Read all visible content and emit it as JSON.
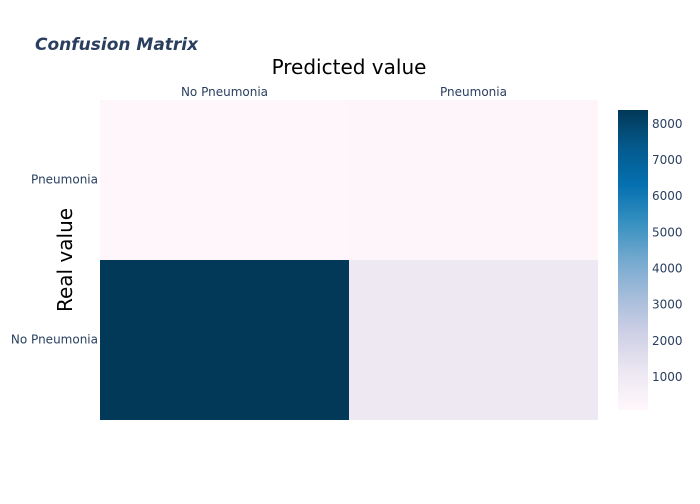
{
  "chart_data": {
    "type": "heatmap",
    "title": "Confusion Matrix",
    "xlabel": "Predicted value",
    "ylabel": "Real value",
    "x_categories": [
      "No Pneumonia",
      "Pneumonia"
    ],
    "y_categories": [
      "Pneumonia",
      "No Pneumonia"
    ],
    "z": [
      [
        150,
        200
      ],
      [
        8400,
        1100
      ]
    ],
    "colorscale": "PuBu",
    "zlim": [
      100,
      8400
    ],
    "colorbar_ticks": [
      1000,
      2000,
      3000,
      4000,
      5000,
      6000,
      7000,
      8000
    ],
    "colors": {
      "title": "#2a3f5f",
      "tick": "#2a3f5f",
      "axis_title": "#000000"
    }
  }
}
